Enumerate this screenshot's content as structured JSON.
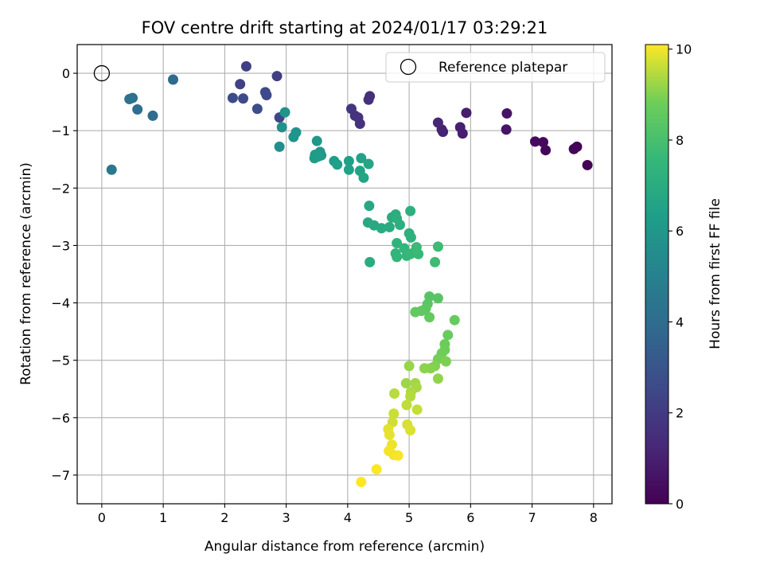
{
  "chart_data": {
    "type": "scatter",
    "title": "FOV centre drift starting at 2024/01/17 03:29:21",
    "xlabel": "Angular distance from reference (arcmin)",
    "ylabel": "Rotation from reference (arcmin)",
    "xlim": [
      -0.4,
      8.3
    ],
    "ylim": [
      -7.5,
      0.5
    ],
    "xticks": [
      0,
      1,
      2,
      3,
      4,
      5,
      6,
      7,
      8
    ],
    "yticks": [
      0,
      -1,
      -2,
      -3,
      -4,
      -5,
      -6,
      -7
    ],
    "grid": true,
    "legend": {
      "position": "top-right",
      "entries": [
        {
          "label": "Reference platepar",
          "marker": "open-circle"
        }
      ]
    },
    "reference_point": {
      "x": 0,
      "y": 0
    },
    "colorbar": {
      "label": "Hours from first FF file",
      "range": [
        0,
        10.1
      ],
      "ticks": [
        0,
        2,
        4,
        6,
        8,
        10
      ],
      "colormap": "viridis"
    },
    "points": [
      {
        "x": 7.9,
        "y": -1.6,
        "h": 0.05
      },
      {
        "x": 7.73,
        "y": -1.28,
        "h": 0.1
      },
      {
        "x": 7.68,
        "y": -1.32,
        "h": 0.15
      },
      {
        "x": 7.22,
        "y": -1.34,
        "h": 0.2
      },
      {
        "x": 7.18,
        "y": -1.2,
        "h": 0.25
      },
      {
        "x": 7.05,
        "y": -1.19,
        "h": 0.3
      },
      {
        "x": 6.59,
        "y": -0.7,
        "h": 0.6
      },
      {
        "x": 6.58,
        "y": -0.98,
        "h": 0.65
      },
      {
        "x": 5.93,
        "y": -0.69,
        "h": 0.9
      },
      {
        "x": 5.87,
        "y": -1.05,
        "h": 0.95
      },
      {
        "x": 5.83,
        "y": -0.94,
        "h": 1.0
      },
      {
        "x": 5.55,
        "y": -1.02,
        "h": 1.05
      },
      {
        "x": 5.53,
        "y": -0.98,
        "h": 1.1
      },
      {
        "x": 5.47,
        "y": -0.86,
        "h": 1.15
      },
      {
        "x": 4.36,
        "y": -0.4,
        "h": 1.5
      },
      {
        "x": 4.34,
        "y": -0.46,
        "h": 1.55
      },
      {
        "x": 4.2,
        "y": -0.88,
        "h": 1.6
      },
      {
        "x": 4.17,
        "y": -0.77,
        "h": 1.65
      },
      {
        "x": 4.12,
        "y": -0.74,
        "h": 1.7
      },
      {
        "x": 4.06,
        "y": -0.62,
        "h": 1.75
      },
      {
        "x": 2.85,
        "y": -0.05,
        "h": 2.1
      },
      {
        "x": 2.35,
        "y": 0.12,
        "h": 2.15
      },
      {
        "x": 2.25,
        "y": -0.19,
        "h": 2.2
      },
      {
        "x": 2.89,
        "y": -0.77,
        "h": 2.4
      },
      {
        "x": 2.68,
        "y": -0.38,
        "h": 2.5
      },
      {
        "x": 2.66,
        "y": -0.33,
        "h": 2.55
      },
      {
        "x": 2.3,
        "y": -0.44,
        "h": 2.6
      },
      {
        "x": 2.13,
        "y": -0.43,
        "h": 2.65
      },
      {
        "x": 2.53,
        "y": -0.62,
        "h": 2.7
      },
      {
        "x": 1.16,
        "y": -0.11,
        "h": 3.9
      },
      {
        "x": 0.83,
        "y": -0.74,
        "h": 4.0
      },
      {
        "x": 0.58,
        "y": -0.63,
        "h": 4.1
      },
      {
        "x": 0.5,
        "y": -0.43,
        "h": 4.2
      },
      {
        "x": 0.45,
        "y": -0.45,
        "h": 4.3
      },
      {
        "x": 0.16,
        "y": -1.68,
        "h": 4.5
      },
      {
        "x": 2.89,
        "y": -1.28,
        "h": 5.6
      },
      {
        "x": 2.93,
        "y": -0.94,
        "h": 5.7
      },
      {
        "x": 2.98,
        "y": -0.68,
        "h": 5.75
      },
      {
        "x": 3.12,
        "y": -1.11,
        "h": 5.8
      },
      {
        "x": 3.16,
        "y": -1.03,
        "h": 5.85
      },
      {
        "x": 3.5,
        "y": -1.18,
        "h": 6.0
      },
      {
        "x": 3.55,
        "y": -1.37,
        "h": 6.05
      },
      {
        "x": 3.57,
        "y": -1.43,
        "h": 6.1
      },
      {
        "x": 3.47,
        "y": -1.42,
        "h": 6.15
      },
      {
        "x": 3.46,
        "y": -1.48,
        "h": 6.2
      },
      {
        "x": 3.52,
        "y": -1.45,
        "h": 6.25
      },
      {
        "x": 3.78,
        "y": -1.53,
        "h": 6.3
      },
      {
        "x": 3.83,
        "y": -1.59,
        "h": 6.35
      },
      {
        "x": 4.02,
        "y": -1.53,
        "h": 6.4
      },
      {
        "x": 4.02,
        "y": -1.68,
        "h": 6.45
      },
      {
        "x": 4.22,
        "y": -1.48,
        "h": 6.5
      },
      {
        "x": 4.2,
        "y": -1.7,
        "h": 6.55
      },
      {
        "x": 4.26,
        "y": -1.82,
        "h": 6.6
      },
      {
        "x": 4.34,
        "y": -1.58,
        "h": 6.65
      },
      {
        "x": 4.35,
        "y": -2.31,
        "h": 6.75
      },
      {
        "x": 4.33,
        "y": -2.6,
        "h": 6.8
      },
      {
        "x": 4.43,
        "y": -2.65,
        "h": 6.85
      },
      {
        "x": 4.55,
        "y": -2.7,
        "h": 6.9
      },
      {
        "x": 4.68,
        "y": -2.68,
        "h": 6.95
      },
      {
        "x": 4.72,
        "y": -2.51,
        "h": 7.0
      },
      {
        "x": 4.78,
        "y": -2.46,
        "h": 7.05
      },
      {
        "x": 4.8,
        "y": -2.53,
        "h": 7.1
      },
      {
        "x": 4.85,
        "y": -2.64,
        "h": 7.15
      },
      {
        "x": 5.02,
        "y": -2.4,
        "h": 7.15
      },
      {
        "x": 5.0,
        "y": -2.79,
        "h": 7.2
      },
      {
        "x": 5.03,
        "y": -2.86,
        "h": 7.25
      },
      {
        "x": 4.8,
        "y": -2.96,
        "h": 7.3
      },
      {
        "x": 4.78,
        "y": -3.14,
        "h": 7.35
      },
      {
        "x": 4.8,
        "y": -3.2,
        "h": 7.4
      },
      {
        "x": 4.92,
        "y": -3.05,
        "h": 7.45
      },
      {
        "x": 4.96,
        "y": -3.18,
        "h": 7.5
      },
      {
        "x": 5.02,
        "y": -3.15,
        "h": 7.55
      },
      {
        "x": 5.08,
        "y": -3.12,
        "h": 7.6
      },
      {
        "x": 5.15,
        "y": -3.15,
        "h": 7.65
      },
      {
        "x": 5.12,
        "y": -3.03,
        "h": 7.7
      },
      {
        "x": 5.47,
        "y": -3.02,
        "h": 7.75
      },
      {
        "x": 5.42,
        "y": -3.29,
        "h": 7.8
      },
      {
        "x": 4.36,
        "y": -3.29,
        "h": 7.0
      },
      {
        "x": 5.33,
        "y": -3.89,
        "h": 8.3
      },
      {
        "x": 5.47,
        "y": -3.92,
        "h": 8.35
      },
      {
        "x": 5.3,
        "y": -4.02,
        "h": 8.4
      },
      {
        "x": 5.27,
        "y": -4.1,
        "h": 8.45
      },
      {
        "x": 5.2,
        "y": -4.14,
        "h": 8.5
      },
      {
        "x": 5.1,
        "y": -4.16,
        "h": 8.55
      },
      {
        "x": 5.33,
        "y": -4.25,
        "h": 8.6
      },
      {
        "x": 5.74,
        "y": -4.3,
        "h": 8.65
      },
      {
        "x": 5.63,
        "y": -4.56,
        "h": 8.7
      },
      {
        "x": 5.58,
        "y": -4.72,
        "h": 8.75
      },
      {
        "x": 5.58,
        "y": -4.82,
        "h": 8.8
      },
      {
        "x": 5.53,
        "y": -4.88,
        "h": 8.85
      },
      {
        "x": 5.47,
        "y": -4.98,
        "h": 8.9
      },
      {
        "x": 5.6,
        "y": -5.02,
        "h": 8.95
      },
      {
        "x": 5.42,
        "y": -5.1,
        "h": 9.0
      },
      {
        "x": 5.35,
        "y": -5.14,
        "h": 9.05
      },
      {
        "x": 5.25,
        "y": -5.14,
        "h": 9.1
      },
      {
        "x": 5.47,
        "y": -5.32,
        "h": 9.15
      },
      {
        "x": 5.0,
        "y": -5.1,
        "h": 9.2
      },
      {
        "x": 4.95,
        "y": -5.4,
        "h": 9.25
      },
      {
        "x": 5.1,
        "y": -5.4,
        "h": 9.3
      },
      {
        "x": 5.12,
        "y": -5.47,
        "h": 9.35
      },
      {
        "x": 5.03,
        "y": -5.55,
        "h": 9.4
      },
      {
        "x": 5.02,
        "y": -5.63,
        "h": 9.45
      },
      {
        "x": 4.76,
        "y": -5.58,
        "h": 9.5
      },
      {
        "x": 4.96,
        "y": -5.78,
        "h": 9.55
      },
      {
        "x": 5.13,
        "y": -5.86,
        "h": 9.6
      },
      {
        "x": 4.75,
        "y": -5.93,
        "h": 9.65
      },
      {
        "x": 4.73,
        "y": -6.08,
        "h": 9.7
      },
      {
        "x": 4.97,
        "y": -6.12,
        "h": 9.75
      },
      {
        "x": 5.02,
        "y": -6.22,
        "h": 9.8
      },
      {
        "x": 4.66,
        "y": -6.2,
        "h": 9.85
      },
      {
        "x": 4.68,
        "y": -6.3,
        "h": 9.9
      },
      {
        "x": 4.72,
        "y": -6.47,
        "h": 9.95
      },
      {
        "x": 4.67,
        "y": -6.58,
        "h": 10.0
      },
      {
        "x": 4.75,
        "y": -6.65,
        "h": 10.0
      },
      {
        "x": 4.82,
        "y": -6.66,
        "h": 10.05
      },
      {
        "x": 4.47,
        "y": -6.9,
        "h": 10.08
      },
      {
        "x": 4.22,
        "y": -7.12,
        "h": 10.1
      }
    ]
  }
}
